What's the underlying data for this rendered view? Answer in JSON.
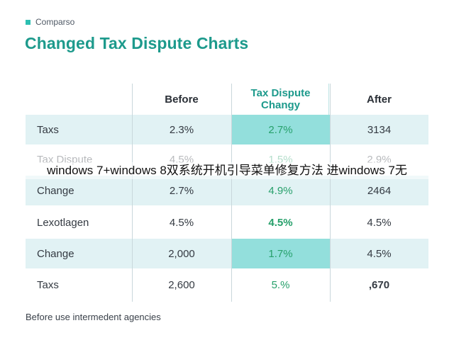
{
  "tag": "Comparso",
  "title": "Changed Tax Dispute Charts",
  "table": {
    "headers": [
      "",
      "Before",
      "Tax Dispute\nChangy",
      "After"
    ],
    "header_line1": "Tax Dispute",
    "header_line2": "Changy",
    "rows": [
      {
        "label": "Taxs",
        "before": "2.3%",
        "change": "2.7%",
        "after": "3134"
      },
      {
        "label": "Tax Dispute",
        "before": "4.5%",
        "change": "1.5%",
        "after": "2.9%"
      },
      {
        "label": "Change",
        "before": "2.7%",
        "change": "4.9%",
        "after": "2464"
      },
      {
        "label": "Lexotlagen",
        "before": "4.5%",
        "change": "4.5%",
        "after": "4.5%"
      },
      {
        "label": "Change",
        "before": "2,000",
        "change": "1.7%",
        "after": "4.5%"
      },
      {
        "label": "Taxs",
        "before": "2,600",
        "change": "5.%",
        "after": ",670"
      }
    ]
  },
  "footer": "Before use intermedent agencies",
  "overlay": "windows 7+windows 8双系统开机引导菜单修复方法 进windows 7无",
  "colors": {
    "accent": "#1d9a8c",
    "highlight": "#93dfdc",
    "row_shade": "#e1f2f4",
    "value_green": "#27a06b"
  }
}
